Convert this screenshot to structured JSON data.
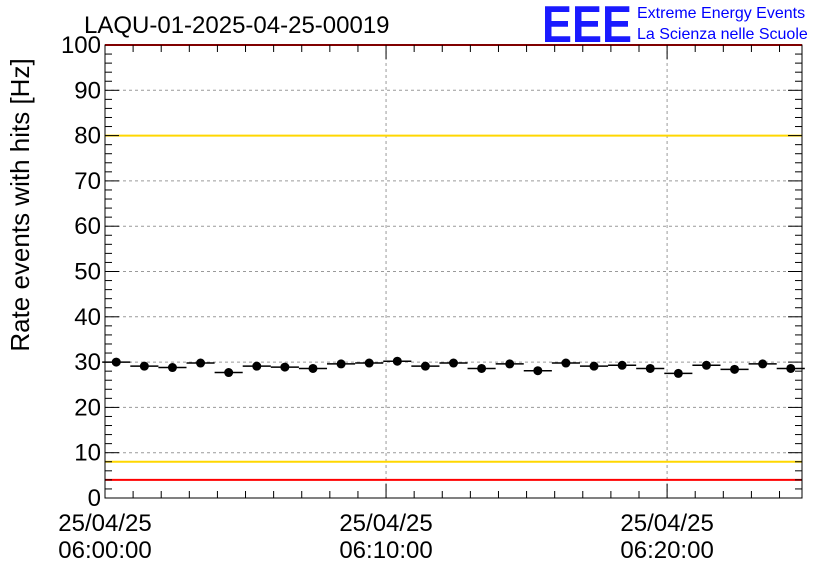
{
  "chart_data": {
    "type": "scatter",
    "title": "LAQU-01-2025-04-25-00019",
    "ylabel": "Rate events with hits [Hz]",
    "xlabel": "",
    "ylim": [
      0,
      100
    ],
    "yticks": [
      0,
      10,
      20,
      30,
      40,
      50,
      60,
      70,
      80,
      90,
      100
    ],
    "x_range_min": [
      0,
      24.8
    ],
    "x_ticks": [
      {
        "t": 0,
        "date": "25/04/25",
        "time": "06:00:00"
      },
      {
        "t": 10,
        "date": "25/04/25",
        "time": "06:10:00"
      },
      {
        "t": 20,
        "date": "25/04/25",
        "time": "06:20:00"
      }
    ],
    "x_unit": "minutes since 06:00:00",
    "bin_width_min": 1,
    "grid": true,
    "series": [
      {
        "name": "rate",
        "x": [
          0.4,
          1.4,
          2.4,
          3.4,
          4.4,
          5.4,
          6.4,
          7.4,
          8.4,
          9.4,
          10.4,
          11.4,
          12.4,
          13.4,
          14.4,
          15.4,
          16.4,
          17.4,
          18.4,
          19.4,
          20.4,
          21.4,
          22.4,
          23.4,
          24.4
        ],
        "values": [
          30.0,
          29.1,
          28.8,
          29.8,
          27.7,
          29.1,
          28.9,
          28.6,
          29.6,
          29.8,
          30.2,
          29.1,
          29.8,
          28.6,
          29.6,
          28.1,
          29.8,
          29.1,
          29.3,
          28.6,
          27.5,
          29.3,
          28.4,
          29.6,
          28.6
        ]
      }
    ],
    "reference_lines": [
      {
        "name": "upper-red-limit",
        "y": 100,
        "color": "#ff0000"
      },
      {
        "name": "upper-yellow-limit",
        "y": 80,
        "color": "#ffd700"
      },
      {
        "name": "lower-yellow-limit",
        "y": 8,
        "color": "#ffd700"
      },
      {
        "name": "lower-red-limit",
        "y": 4,
        "color": "#ff0000"
      }
    ]
  },
  "logo": {
    "text": "EEE",
    "line1": "Extreme Energy Events",
    "line2": "La Scienza nelle Scuole",
    "color": "#0000ff"
  }
}
